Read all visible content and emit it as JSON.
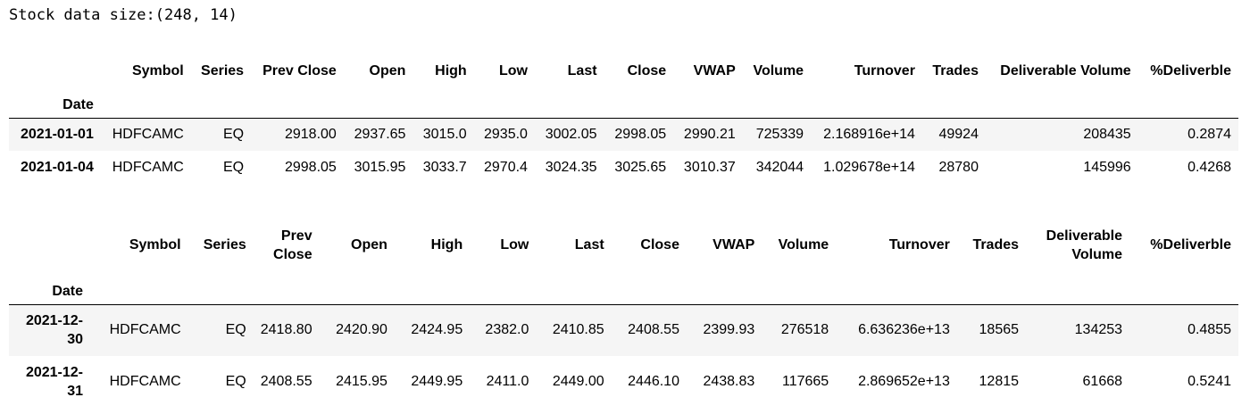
{
  "output_text": "Stock data size:(248, 14)",
  "index_name": "Date",
  "columns": [
    "Symbol",
    "Series",
    "Prev Close",
    "Open",
    "High",
    "Low",
    "Last",
    "Close",
    "VWAP",
    "Volume",
    "Turnover",
    "Trades",
    "Deliverable Volume",
    "%Deliverble"
  ],
  "head_table": {
    "rows": [
      {
        "date": "2021-01-01",
        "values": [
          "HDFCAMC",
          "EQ",
          "2918.00",
          "2937.65",
          "3015.0",
          "2935.0",
          "3002.05",
          "2998.05",
          "2990.21",
          "725339",
          "2.168916e+14",
          "49924",
          "208435",
          "0.2874"
        ]
      },
      {
        "date": "2021-01-04",
        "values": [
          "HDFCAMC",
          "EQ",
          "2998.05",
          "3015.95",
          "3033.7",
          "2970.4",
          "3024.35",
          "3025.65",
          "3010.37",
          "342044",
          "1.029678e+14",
          "28780",
          "145996",
          "0.4268"
        ]
      }
    ]
  },
  "tail_table": {
    "rows": [
      {
        "date": "2021-12-30",
        "values": [
          "HDFCAMC",
          "EQ",
          "2418.80",
          "2420.90",
          "2424.95",
          "2382.0",
          "2410.85",
          "2408.55",
          "2399.93",
          "276518",
          "6.636236e+13",
          "18565",
          "134253",
          "0.4855"
        ]
      },
      {
        "date": "2021-12-31",
        "values": [
          "HDFCAMC",
          "EQ",
          "2408.55",
          "2415.95",
          "2449.95",
          "2411.0",
          "2449.00",
          "2446.10",
          "2438.83",
          "117665",
          "2.869652e+13",
          "12815",
          "61668",
          "0.5241"
        ]
      }
    ]
  }
}
